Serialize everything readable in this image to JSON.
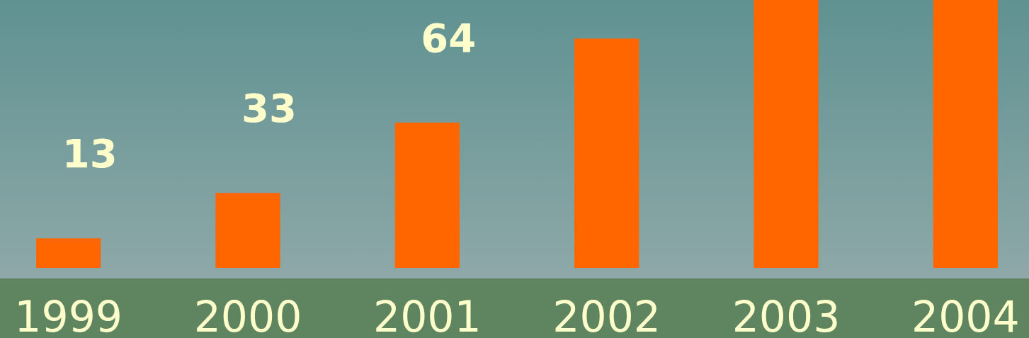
{
  "chart_data": {
    "type": "bar",
    "categories": [
      "1999",
      "2000",
      "2001",
      "2002",
      "2003",
      "2004"
    ],
    "values": [
      13,
      33,
      64,
      101,
      118,
      118
    ],
    "value_labels": [
      "13",
      "33",
      "64",
      null,
      null,
      null
    ],
    "color": "#ff6600",
    "ylim": [
      0,
      118
    ]
  }
}
